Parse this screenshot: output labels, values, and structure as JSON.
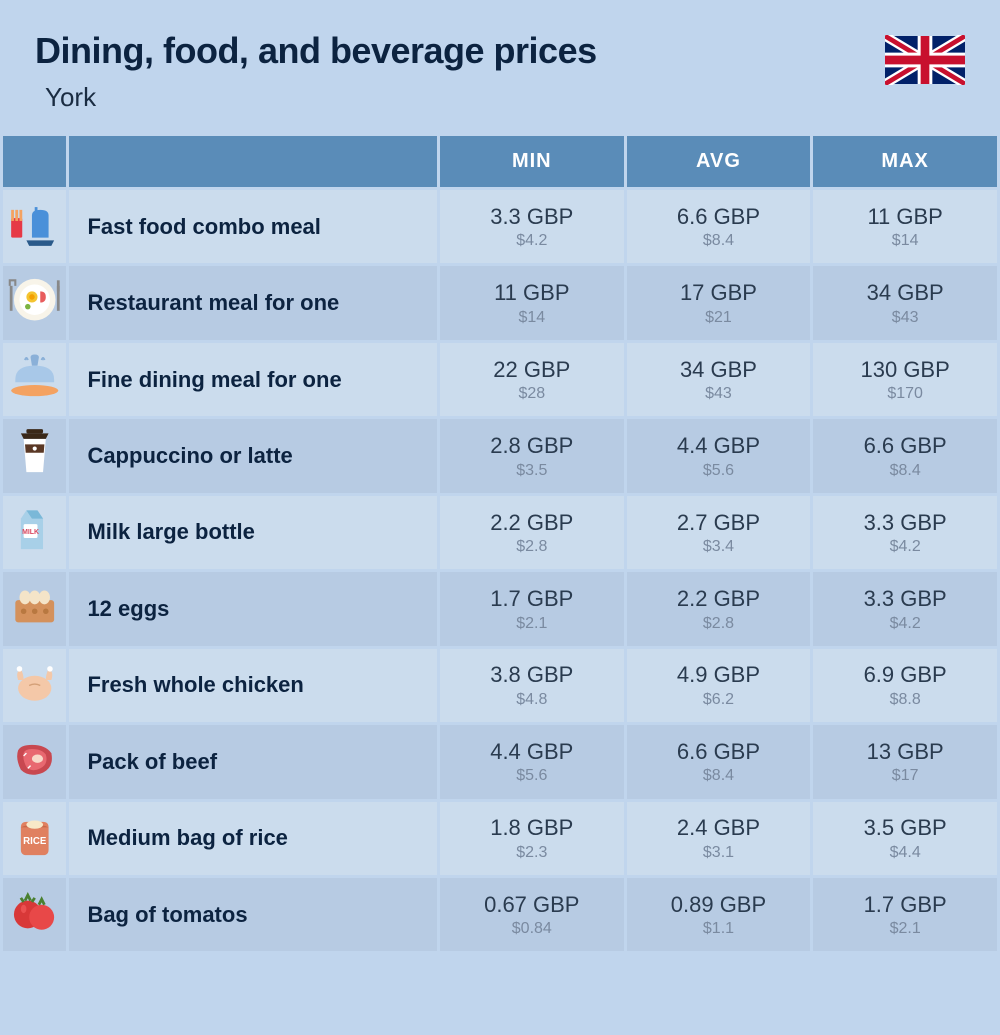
{
  "header": {
    "title": "Dining, food, and beverage prices",
    "subtitle": "York",
    "flag": "uk"
  },
  "columns": [
    "MIN",
    "AVG",
    "MAX"
  ],
  "table": {
    "header_bg": "#5a8cb8",
    "header_text_color": "#ffffff",
    "row_even_bg": "#cbdced",
    "row_odd_bg": "#b7cbe3",
    "page_bg": "#c0d5ed",
    "price_main_color": "#2a3b4f",
    "price_sub_color": "#7a8aa0",
    "name_color": "#0c2340"
  },
  "items": [
    {
      "icon": "fast-food",
      "name": "Fast food combo meal",
      "min_gbp": "3.3 GBP",
      "min_usd": "$4.2",
      "avg_gbp": "6.6 GBP",
      "avg_usd": "$8.4",
      "max_gbp": "11 GBP",
      "max_usd": "$14"
    },
    {
      "icon": "restaurant",
      "name": "Restaurant meal for one",
      "min_gbp": "11 GBP",
      "min_usd": "$14",
      "avg_gbp": "17 GBP",
      "avg_usd": "$21",
      "max_gbp": "34 GBP",
      "max_usd": "$43"
    },
    {
      "icon": "fine-dining",
      "name": "Fine dining meal for one",
      "min_gbp": "22 GBP",
      "min_usd": "$28",
      "avg_gbp": "34 GBP",
      "avg_usd": "$43",
      "max_gbp": "130 GBP",
      "max_usd": "$170"
    },
    {
      "icon": "coffee",
      "name": "Cappuccino or latte",
      "min_gbp": "2.8 GBP",
      "min_usd": "$3.5",
      "avg_gbp": "4.4 GBP",
      "avg_usd": "$5.6",
      "max_gbp": "6.6 GBP",
      "max_usd": "$8.4"
    },
    {
      "icon": "milk",
      "name": "Milk large bottle",
      "min_gbp": "2.2 GBP",
      "min_usd": "$2.8",
      "avg_gbp": "2.7 GBP",
      "avg_usd": "$3.4",
      "max_gbp": "3.3 GBP",
      "max_usd": "$4.2"
    },
    {
      "icon": "eggs",
      "name": "12 eggs",
      "min_gbp": "1.7 GBP",
      "min_usd": "$2.1",
      "avg_gbp": "2.2 GBP",
      "avg_usd": "$2.8",
      "max_gbp": "3.3 GBP",
      "max_usd": "$4.2"
    },
    {
      "icon": "chicken",
      "name": "Fresh whole chicken",
      "min_gbp": "3.8 GBP",
      "min_usd": "$4.8",
      "avg_gbp": "4.9 GBP",
      "avg_usd": "$6.2",
      "max_gbp": "6.9 GBP",
      "max_usd": "$8.8"
    },
    {
      "icon": "beef",
      "name": "Pack of beef",
      "min_gbp": "4.4 GBP",
      "min_usd": "$5.6",
      "avg_gbp": "6.6 GBP",
      "avg_usd": "$8.4",
      "max_gbp": "13 GBP",
      "max_usd": "$17"
    },
    {
      "icon": "rice",
      "name": "Medium bag of rice",
      "min_gbp": "1.8 GBP",
      "min_usd": "$2.3",
      "avg_gbp": "2.4 GBP",
      "avg_usd": "$3.1",
      "max_gbp": "3.5 GBP",
      "max_usd": "$4.4"
    },
    {
      "icon": "tomatoes",
      "name": "Bag of tomatos",
      "min_gbp": "0.67 GBP",
      "min_usd": "$0.84",
      "avg_gbp": "0.89 GBP",
      "avg_usd": "$1.1",
      "max_gbp": "1.7 GBP",
      "max_usd": "$2.1"
    }
  ]
}
